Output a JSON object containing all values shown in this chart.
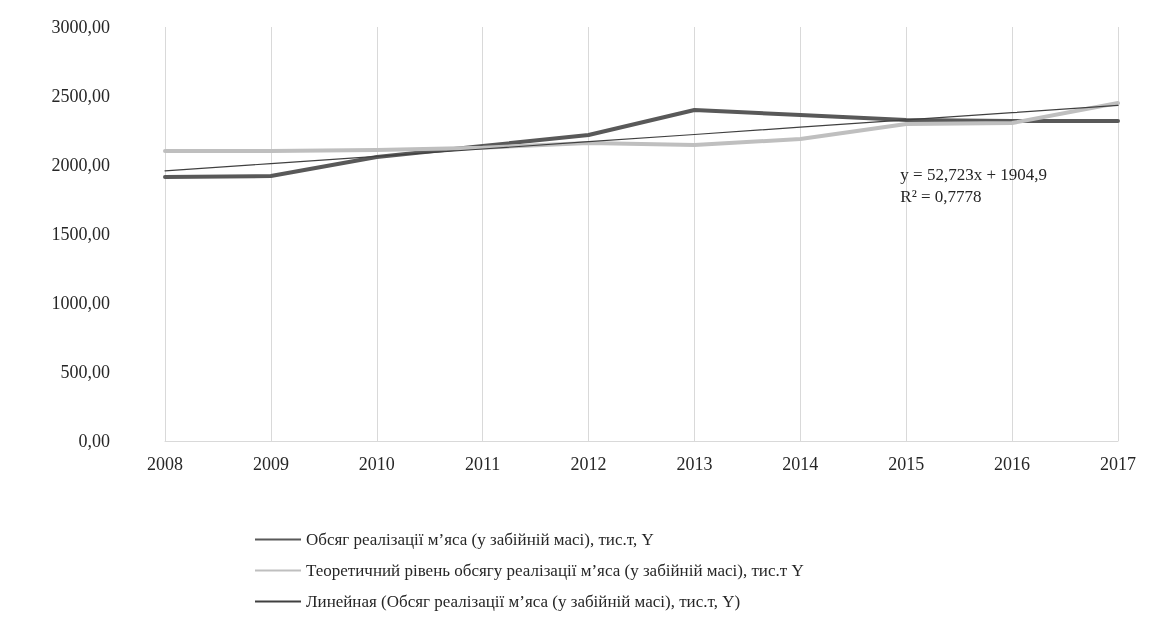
{
  "chart_data": {
    "type": "line",
    "categories": [
      "2008",
      "2009",
      "2010",
      "2011",
      "2012",
      "2013",
      "2014",
      "2015",
      "2016",
      "2017"
    ],
    "series": [
      {
        "name": "Обсяг реалізації м’яса (у забійній масі), тис.т, Y",
        "color": "#595959",
        "values": [
          1913,
          1920,
          2058,
          2138,
          2217,
          2399,
          2362,
          2326,
          2319,
          2319
        ]
      },
      {
        "name": "Теоретичний рівень обсягу реалізації м’яса (у забійній масі), тис.т Y",
        "color": "#bfbfbf",
        "values": [
          2101,
          2102,
          2108,
          2125,
          2160,
          2145,
          2188,
          2297,
          2304,
          2449
        ]
      },
      {
        "name": "Линейная (Обсяг реалізації м’яса (у забійній масі), тис.т, Y)",
        "color": "#404040",
        "line_style": "solid",
        "values": [
          1958,
          2010,
          2063,
          2116,
          2169,
          2221,
          2274,
          2327,
          2379,
          2432
        ]
      }
    ],
    "ylim": [
      0,
      3000
    ],
    "yticks": [
      {
        "value": 0,
        "label": "0,00"
      },
      {
        "value": 500,
        "label": "500,00"
      },
      {
        "value": 1000,
        "label": "1000,00"
      },
      {
        "value": 1500,
        "label": "1500,00"
      },
      {
        "value": 2000,
        "label": "2000,00"
      },
      {
        "value": 2500,
        "label": "2500,00"
      },
      {
        "value": 3000,
        "label": "3000,00"
      }
    ],
    "grid": "x",
    "legend": "bottom",
    "marker": "none",
    "annotations": [
      "y = 52,723x + 1904,9\nR² = 0,7778"
    ]
  }
}
